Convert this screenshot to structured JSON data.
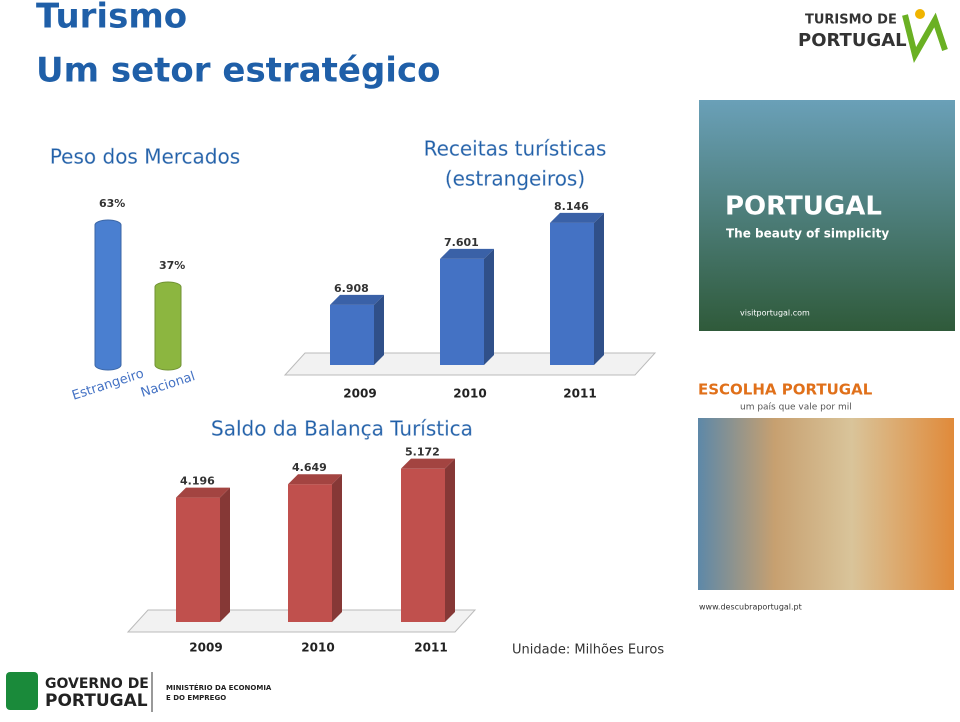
{
  "header": {
    "title": "Turismo",
    "subtitle": "Um setor estratégico"
  },
  "brand": {
    "line1": "TURISMO DE",
    "line2": "PORTUGAL"
  },
  "ad1": {
    "title": "PORTUGAL",
    "tagline": "The beauty of simplicity",
    "url": "visitportugal.com"
  },
  "ad2": {
    "title": "ESCOLHA PORTUGAL",
    "tagline": "um país que vale por mil",
    "url": "www.descubraportugal.pt"
  },
  "unit_note": "Unidade: Milhões Euros",
  "footer": {
    "gov1": "GOVERNO DE",
    "gov2": "PORTUGAL",
    "ministry1": "MINISTÉRIO DA ECONOMIA",
    "ministry2": "E DO EMPREGO"
  },
  "chart_data": [
    {
      "type": "cylinder",
      "title": [
        "Peso dos Mercados"
      ],
      "categories": [
        "Estrangeiro",
        "Nacional"
      ],
      "values": [
        63,
        37
      ],
      "value_labels": [
        "63%",
        "37%"
      ],
      "colors": [
        "#4a7fd0",
        "#8cb640"
      ],
      "ylim": [
        0,
        100
      ]
    },
    {
      "type": "bar3d",
      "title": [
        "Receitas turísticas",
        "(estrangeiros)"
      ],
      "categories": [
        "2009",
        "2010",
        "2011"
      ],
      "values": [
        6908,
        7601,
        8146
      ],
      "value_labels": [
        "6.908",
        "7.601",
        "8.146"
      ],
      "colors": [
        "#4472c4",
        "#4472c4",
        "#4472c4"
      ],
      "ylim": [
        6000,
        8400
      ]
    },
    {
      "type": "bar3d",
      "title": [
        "Saldo da Balança Turística"
      ],
      "categories": [
        "2009",
        "2010",
        "2011"
      ],
      "values": [
        4196,
        4649,
        5172
      ],
      "value_labels": [
        "4.196",
        "4.649",
        "5.172"
      ],
      "colors": [
        "#c0504d",
        "#c0504d",
        "#c0504d"
      ],
      "ylim": [
        0,
        5600
      ]
    }
  ]
}
